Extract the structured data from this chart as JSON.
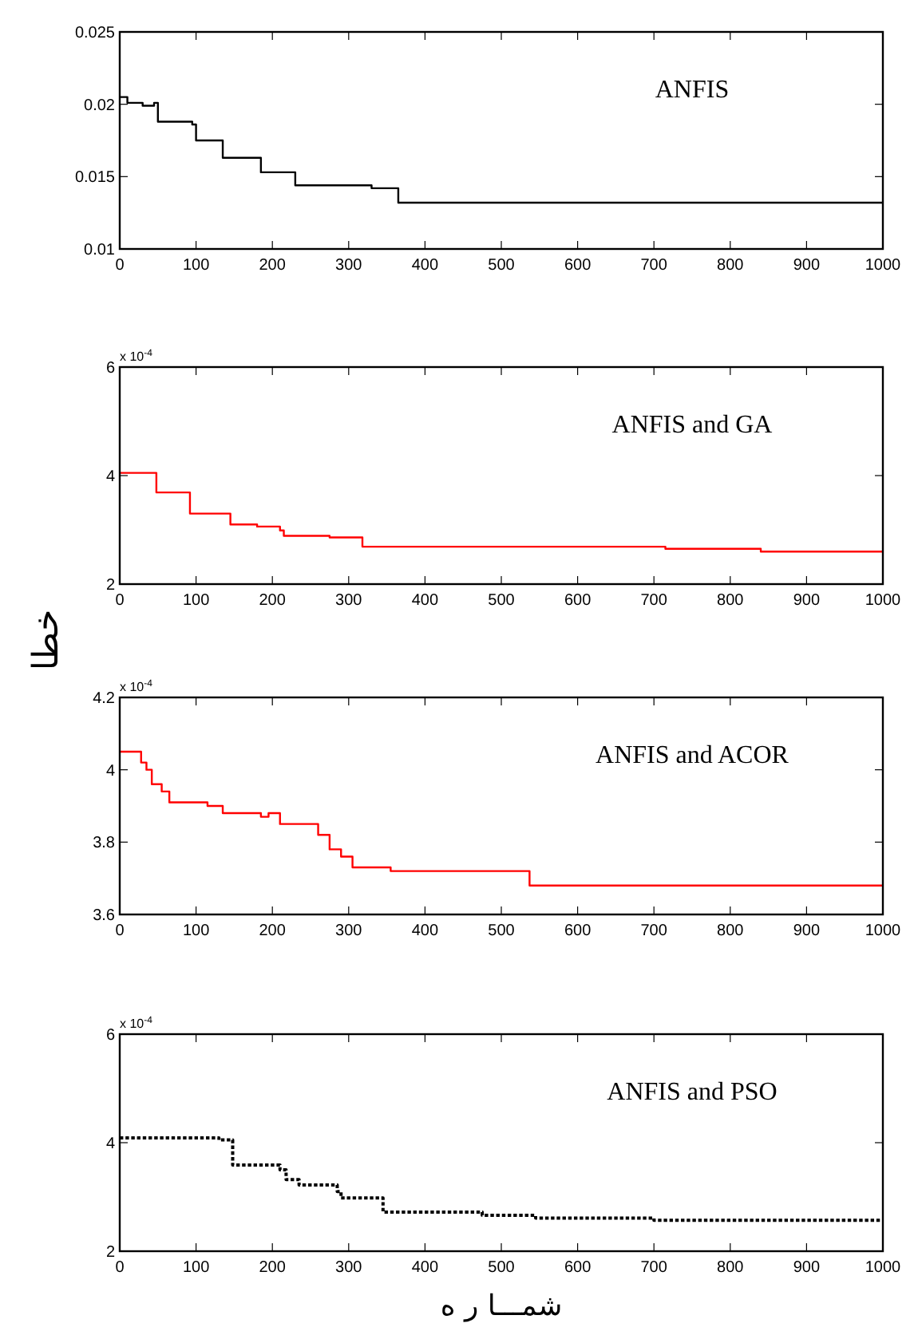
{
  "chart_data": [
    {
      "type": "step",
      "title": "ANFIS",
      "color": "#000000",
      "xlim": [
        0,
        1000
      ],
      "ylim": [
        0.01,
        0.025
      ],
      "xticks": [
        0,
        100,
        200,
        300,
        400,
        500,
        600,
        700,
        800,
        900,
        1000
      ],
      "yticks": [
        0.01,
        0.015,
        0.02,
        0.025
      ],
      "x": [
        0,
        10,
        30,
        45,
        50,
        95,
        100,
        135,
        185,
        230,
        330,
        365,
        1000
      ],
      "values": [
        0.0205,
        0.0201,
        0.0199,
        0.0201,
        0.0188,
        0.0186,
        0.0175,
        0.0163,
        0.0153,
        0.0144,
        0.0142,
        0.0132,
        0.0132
      ]
    },
    {
      "type": "step",
      "title": "ANFIS and GA",
      "ylabel": "خطا",
      "annotations": [
        "x 10$^{-4}$"
      ],
      "color": "#ff0000",
      "xlim": [
        0,
        1000
      ],
      "ylim": [
        2,
        6
      ],
      "xticks": [
        0,
        100,
        200,
        300,
        400,
        500,
        600,
        700,
        800,
        900,
        1000
      ],
      "yticks": [
        2,
        4,
        6
      ],
      "x": [
        0,
        48,
        92,
        145,
        180,
        210,
        215,
        275,
        318,
        715,
        840,
        1000
      ],
      "values": [
        4.05,
        3.69,
        3.3,
        3.1,
        3.06,
        2.99,
        2.89,
        2.86,
        2.69,
        2.65,
        2.6,
        2.6
      ]
    },
    {
      "type": "step",
      "title": "ANFIS and ACOR",
      "annotations": [
        "x 10$^{-4}$"
      ],
      "color": "#ff0000",
      "xlim": [
        0,
        1000
      ],
      "ylim": [
        3.6,
        4.2
      ],
      "xticks": [
        0,
        100,
        200,
        300,
        400,
        500,
        600,
        700,
        800,
        900,
        1000
      ],
      "yticks": [
        3.6,
        3.8,
        4,
        4.2
      ],
      "x": [
        0,
        28,
        35,
        42,
        55,
        65,
        115,
        135,
        185,
        195,
        210,
        260,
        275,
        290,
        305,
        355,
        537,
        1000
      ],
      "values": [
        4.05,
        4.02,
        4.0,
        3.96,
        3.94,
        3.91,
        3.9,
        3.88,
        3.87,
        3.88,
        3.85,
        3.82,
        3.78,
        3.76,
        3.73,
        3.72,
        3.68,
        3.68
      ]
    },
    {
      "type": "step",
      "title": "ANFIS and PSO",
      "xlabel": "شمـــا ر ه",
      "annotations": [
        "x 10$^{-4}$"
      ],
      "color": "#000000",
      "line_style": "dotted",
      "xlim": [
        0,
        1000
      ],
      "ylim": [
        2,
        6
      ],
      "xticks": [
        0,
        100,
        200,
        300,
        400,
        500,
        600,
        700,
        800,
        900,
        1000
      ],
      "yticks": [
        2,
        4,
        6
      ],
      "x": [
        0,
        130,
        148,
        210,
        218,
        235,
        285,
        290,
        345,
        475,
        545,
        700,
        1000
      ],
      "values": [
        4.09,
        4.05,
        3.59,
        3.5,
        3.32,
        3.22,
        3.1,
        2.98,
        2.72,
        2.66,
        2.61,
        2.57,
        2.57
      ]
    }
  ]
}
